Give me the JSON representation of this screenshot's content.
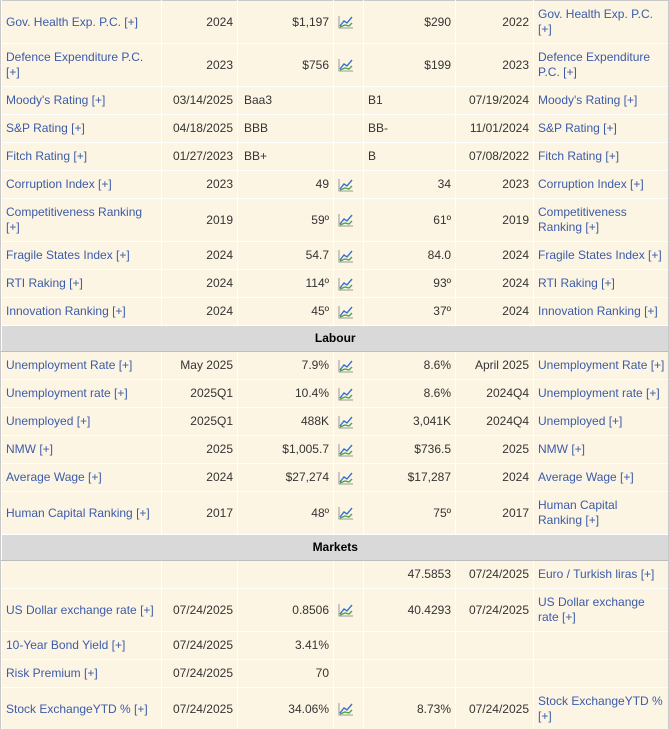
{
  "colors": {
    "row_bg": "#fdf5e3",
    "section_bg": "#d9d9d9",
    "link": "#3b5ba9",
    "footer": "#27348b",
    "chart_line_blue": "#3b6fd4",
    "chart_line_green": "#4aa546"
  },
  "icons": {
    "chart_icon_name": "mini-line-chart-icon"
  },
  "table": {
    "sections": [
      {
        "header": "",
        "rows": [
          {
            "name": "Gov. Health Exp. P.C. [+]",
            "date": "2024",
            "value": "$1,197",
            "chart": true,
            "value2": "$290",
            "date2": "2022",
            "name2": "Gov. Health Exp. P.C. [+]",
            "rating": false
          },
          {
            "name": "Defence Expenditure P.C. [+]",
            "date": "2023",
            "value": "$756",
            "chart": true,
            "value2": "$199",
            "date2": "2023",
            "name2": "Defence Expenditure P.C. [+]",
            "rating": false
          },
          {
            "name": "Moody's Rating [+]",
            "date": "03/14/2025",
            "value": "Baa3",
            "chart": false,
            "value2": "B1",
            "date2": "07/19/2024",
            "name2": "Moody's Rating [+]",
            "rating": true
          },
          {
            "name": "S&P Rating [+]",
            "date": "04/18/2025",
            "value": "BBB",
            "chart": false,
            "value2": "BB-",
            "date2": "11/01/2024",
            "name2": "S&P Rating [+]",
            "rating": true
          },
          {
            "name": "Fitch Rating [+]",
            "date": "01/27/2023",
            "value": "BB+",
            "chart": false,
            "value2": "B",
            "date2": "07/08/2022",
            "name2": "Fitch Rating [+]",
            "rating": true
          },
          {
            "name": "Corruption Index [+]",
            "date": "2023",
            "value": "49",
            "chart": true,
            "value2": "34",
            "date2": "2023",
            "name2": "Corruption Index [+]",
            "rating": false
          },
          {
            "name": "Competitiveness Ranking [+]",
            "date": "2019",
            "value": "59º",
            "chart": true,
            "value2": "61º",
            "date2": "2019",
            "name2": "Competitiveness Ranking [+]",
            "rating": false
          },
          {
            "name": "Fragile States Index [+]",
            "date": "2024",
            "value": "54.7",
            "chart": true,
            "value2": "84.0",
            "date2": "2024",
            "name2": "Fragile States Index [+]",
            "rating": false
          },
          {
            "name": "RTI Raking [+]",
            "date": "2024",
            "value": "114º",
            "chart": true,
            "value2": "93º",
            "date2": "2024",
            "name2": "RTI Raking [+]",
            "rating": false
          },
          {
            "name": "Innovation Ranking [+]",
            "date": "2024",
            "value": "45º",
            "chart": true,
            "value2": "37º",
            "date2": "2024",
            "name2": "Innovation Ranking [+]",
            "rating": false
          }
        ]
      },
      {
        "header": "Labour",
        "rows": [
          {
            "name": "Unemployment Rate [+]",
            "date": "May 2025",
            "value": "7.9%",
            "chart": true,
            "value2": "8.6%",
            "date2": "April 2025",
            "name2": "Unemployment Rate [+]",
            "rating": false
          },
          {
            "name": "Unemployment rate [+]",
            "date": "2025Q1",
            "value": "10.4%",
            "chart": true,
            "value2": "8.6%",
            "date2": "2024Q4",
            "name2": "Unemployment rate [+]",
            "rating": false
          },
          {
            "name": "Unemployed [+]",
            "date": "2025Q1",
            "value": "488K",
            "chart": true,
            "value2": "3,041K",
            "date2": "2024Q4",
            "name2": "Unemployed [+]",
            "rating": false
          },
          {
            "name": "NMW [+]",
            "date": "2025",
            "value": "$1,005.7",
            "chart": true,
            "value2": "$736.5",
            "date2": "2025",
            "name2": "NMW [+]",
            "rating": false
          },
          {
            "name": "Average Wage [+]",
            "date": "2024",
            "value": "$27,274",
            "chart": true,
            "value2": "$17,287",
            "date2": "2024",
            "name2": "Average Wage [+]",
            "rating": false
          },
          {
            "name": "Human Capital Ranking [+]",
            "date": "2017",
            "value": "48º",
            "chart": true,
            "value2": "75º",
            "date2": "2017",
            "name2": "Human Capital Ranking [+]",
            "rating": false
          }
        ]
      },
      {
        "header": "Markets",
        "rows": [
          {
            "name": "",
            "date": "",
            "value": "",
            "chart": false,
            "value2": "47.5853",
            "date2": "07/24/2025",
            "name2": "Euro / Turkish liras [+]",
            "rating": false
          },
          {
            "name": "US Dollar exchange rate [+]",
            "date": "07/24/2025",
            "value": "0.8506",
            "chart": true,
            "value2": "40.4293",
            "date2": "07/24/2025",
            "name2": "US Dollar exchange rate [+]",
            "rating": false
          },
          {
            "name": "10-Year Bond Yield [+]",
            "date": "07/24/2025",
            "value": "3.41%",
            "chart": false,
            "value2": "",
            "date2": "",
            "name2": "",
            "rating": false
          },
          {
            "name": "Risk Premium [+]",
            "date": "07/24/2025",
            "value": "70",
            "chart": false,
            "value2": "",
            "date2": "",
            "name2": "",
            "rating": false
          },
          {
            "name": "Stock ExchangeYTD % [+]",
            "date": "07/24/2025",
            "value": "34.06%",
            "chart": true,
            "value2": "8.73%",
            "date2": "07/24/2025",
            "name2": "Stock ExchangeYTD % [+]",
            "rating": false
          }
        ]
      }
    ]
  }
}
